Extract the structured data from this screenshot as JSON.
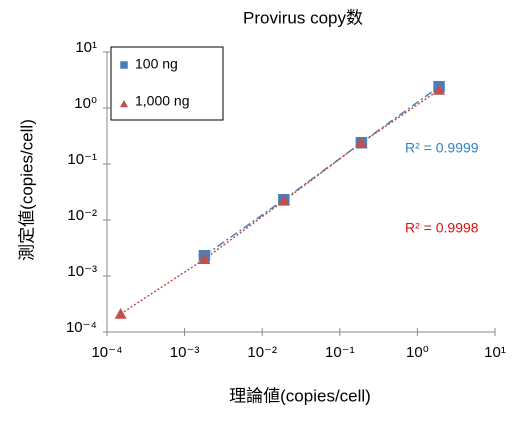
{
  "chart_data": {
    "type": "scatter",
    "title": "Provirus copy数",
    "xlabel": "理論値(copies/cell)",
    "ylabel": "測定値(copies/cell)",
    "xscale": "log",
    "yscale": "log",
    "xlim": [
      0.0001,
      10
    ],
    "ylim": [
      0.0001,
      10
    ],
    "xticks": [
      {
        "value": 0.0001,
        "label": "10⁻⁴"
      },
      {
        "value": 0.001,
        "label": "10⁻³"
      },
      {
        "value": 0.01,
        "label": "10⁻²"
      },
      {
        "value": 0.1,
        "label": "10⁻¹"
      },
      {
        "value": 1,
        "label": "10⁰"
      },
      {
        "value": 10,
        "label": "10¹"
      }
    ],
    "yticks": [
      {
        "value": 0.0001,
        "label": "10⁻⁴"
      },
      {
        "value": 0.001,
        "label": "10⁻³"
      },
      {
        "value": 0.01,
        "label": "10⁻²"
      },
      {
        "value": 0.1,
        "label": "10⁻¹"
      },
      {
        "value": 1,
        "label": "10⁰"
      },
      {
        "value": 10,
        "label": "10¹"
      }
    ],
    "legend": "upper left",
    "series": [
      {
        "name": "100 ng",
        "color": "#4a7ebb",
        "marker": "square",
        "trendline": "dashdot",
        "x": [
          0.0018,
          0.019,
          0.19,
          1.9
        ],
        "y": [
          0.0023,
          0.023,
          0.24,
          2.4
        ]
      },
      {
        "name": "1,000 ng",
        "color": "#c0504d",
        "marker": "triangle",
        "trendline": "dotted",
        "x": [
          0.00015,
          0.0018,
          0.019,
          0.19,
          1.9
        ],
        "y": [
          0.00021,
          0.002,
          0.022,
          0.24,
          2.1
        ]
      }
    ],
    "annotations": [
      {
        "text": "R² = 0.9999",
        "color": "#2e86c1"
      },
      {
        "text": "R² = 0.9998",
        "color": "#e01010"
      }
    ]
  }
}
